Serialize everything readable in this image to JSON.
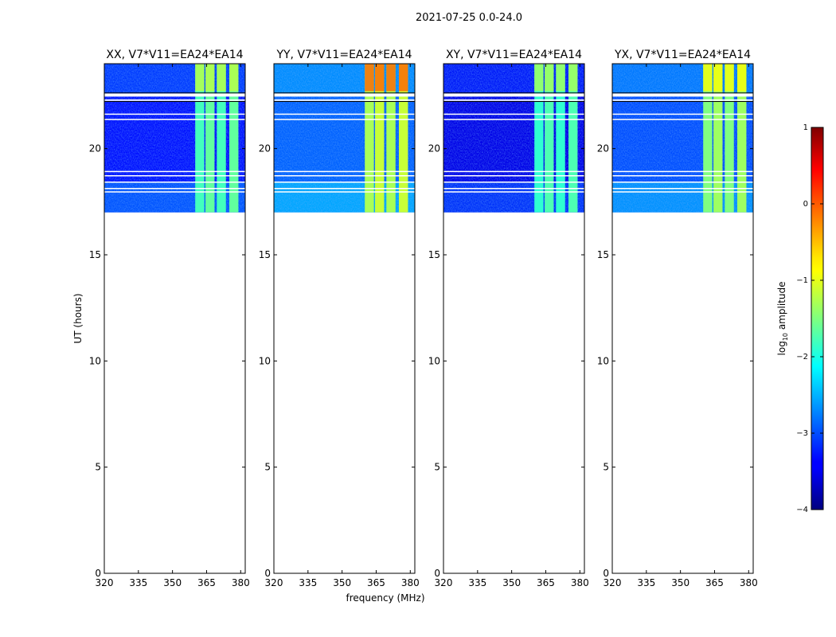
{
  "figure": {
    "title": "2021-07-25 0.0-24.0",
    "ylabel": "UT (hours)",
    "xlabel": "frequency (MHz)",
    "colorbar_label": "log10 amplitude"
  },
  "chart_data": {
    "type": "heatmap",
    "title": "2021-07-25 0.0-24.0",
    "xlabel": "frequency (MHz)",
    "ylabel": "UT (hours)",
    "xlim": [
      320,
      382
    ],
    "ylim": [
      0,
      24
    ],
    "x_ticks": [
      320,
      335,
      350,
      365,
      380
    ],
    "y_ticks": [
      0,
      5,
      10,
      15,
      20
    ],
    "colorbar": {
      "label": "log10 amplitude",
      "range": [
        -4,
        1
      ],
      "ticks": [
        -4,
        -3,
        -2,
        -1,
        0,
        1
      ],
      "tick_labels": [
        "−4",
        "−3",
        "−2",
        "−1",
        "0",
        "1"
      ],
      "colormap": "jet"
    },
    "data_time_range_hours": [
      17.0,
      24.0
    ],
    "rfi_band_mhz": [
      360,
      380
    ],
    "rfi_columns_mhz": [
      [
        360,
        364
      ],
      [
        364.5,
        368.5
      ],
      [
        369.5,
        373.5
      ],
      [
        375,
        379
      ]
    ],
    "flagged_rows_hours": [
      [
        22.45,
        22.6
      ],
      [
        22.25,
        22.32
      ],
      [
        21.6,
        21.65
      ],
      [
        21.35,
        21.4
      ],
      [
        18.9,
        18.95
      ],
      [
        18.7,
        18.75
      ],
      [
        18.4,
        18.45
      ],
      [
        18.1,
        18.15
      ],
      [
        17.95,
        17.99
      ]
    ],
    "panels": [
      {
        "title": "XX, V7*V11=EA24*EA14",
        "base_log_amplitude": -3.3,
        "rfi_log_amplitude": -1.8
      },
      {
        "title": "YY, V7*V11=EA24*EA14",
        "base_log_amplitude": -2.9,
        "rfi_log_amplitude": -1.3
      },
      {
        "title": "XY, V7*V11=EA24*EA14",
        "base_log_amplitude": -3.5,
        "rfi_log_amplitude": -1.9
      },
      {
        "title": "YX, V7*V11=EA24*EA14",
        "base_log_amplitude": -3.0,
        "rfi_log_amplitude": -1.5
      }
    ]
  }
}
